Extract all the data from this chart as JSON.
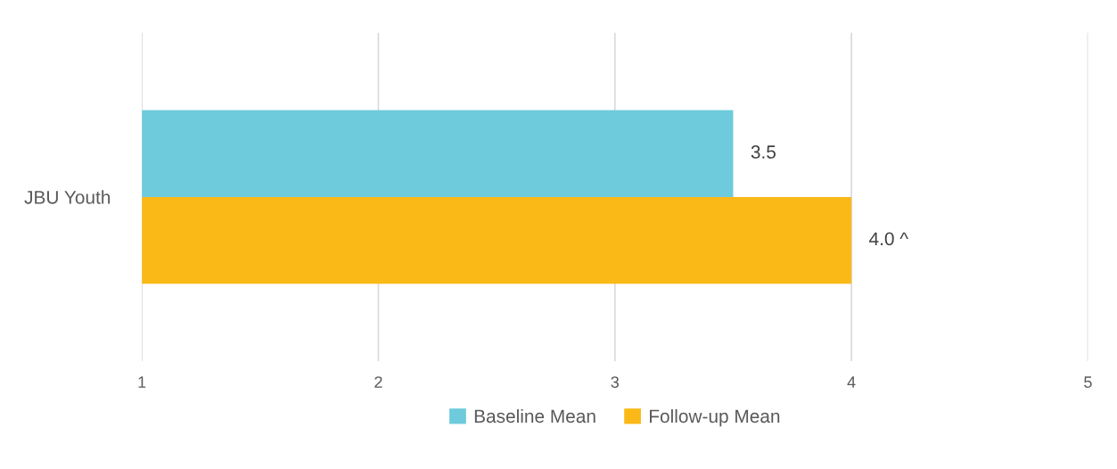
{
  "chart_data": {
    "type": "bar",
    "orientation": "horizontal",
    "categories": [
      "JBU Youth"
    ],
    "series": [
      {
        "name": "Baseline Mean",
        "color": "#6ecbdc",
        "values": [
          3.5
        ],
        "value_labels": [
          "3.5"
        ]
      },
      {
        "name": "Follow-up Mean",
        "color": "#fbb917",
        "values": [
          4.0
        ],
        "value_labels": [
          "4.0 ^"
        ]
      }
    ],
    "xlim": [
      1,
      5
    ],
    "xticks": [
      1,
      2,
      3,
      4,
      5
    ],
    "grid": "x",
    "legend": "bottom"
  }
}
